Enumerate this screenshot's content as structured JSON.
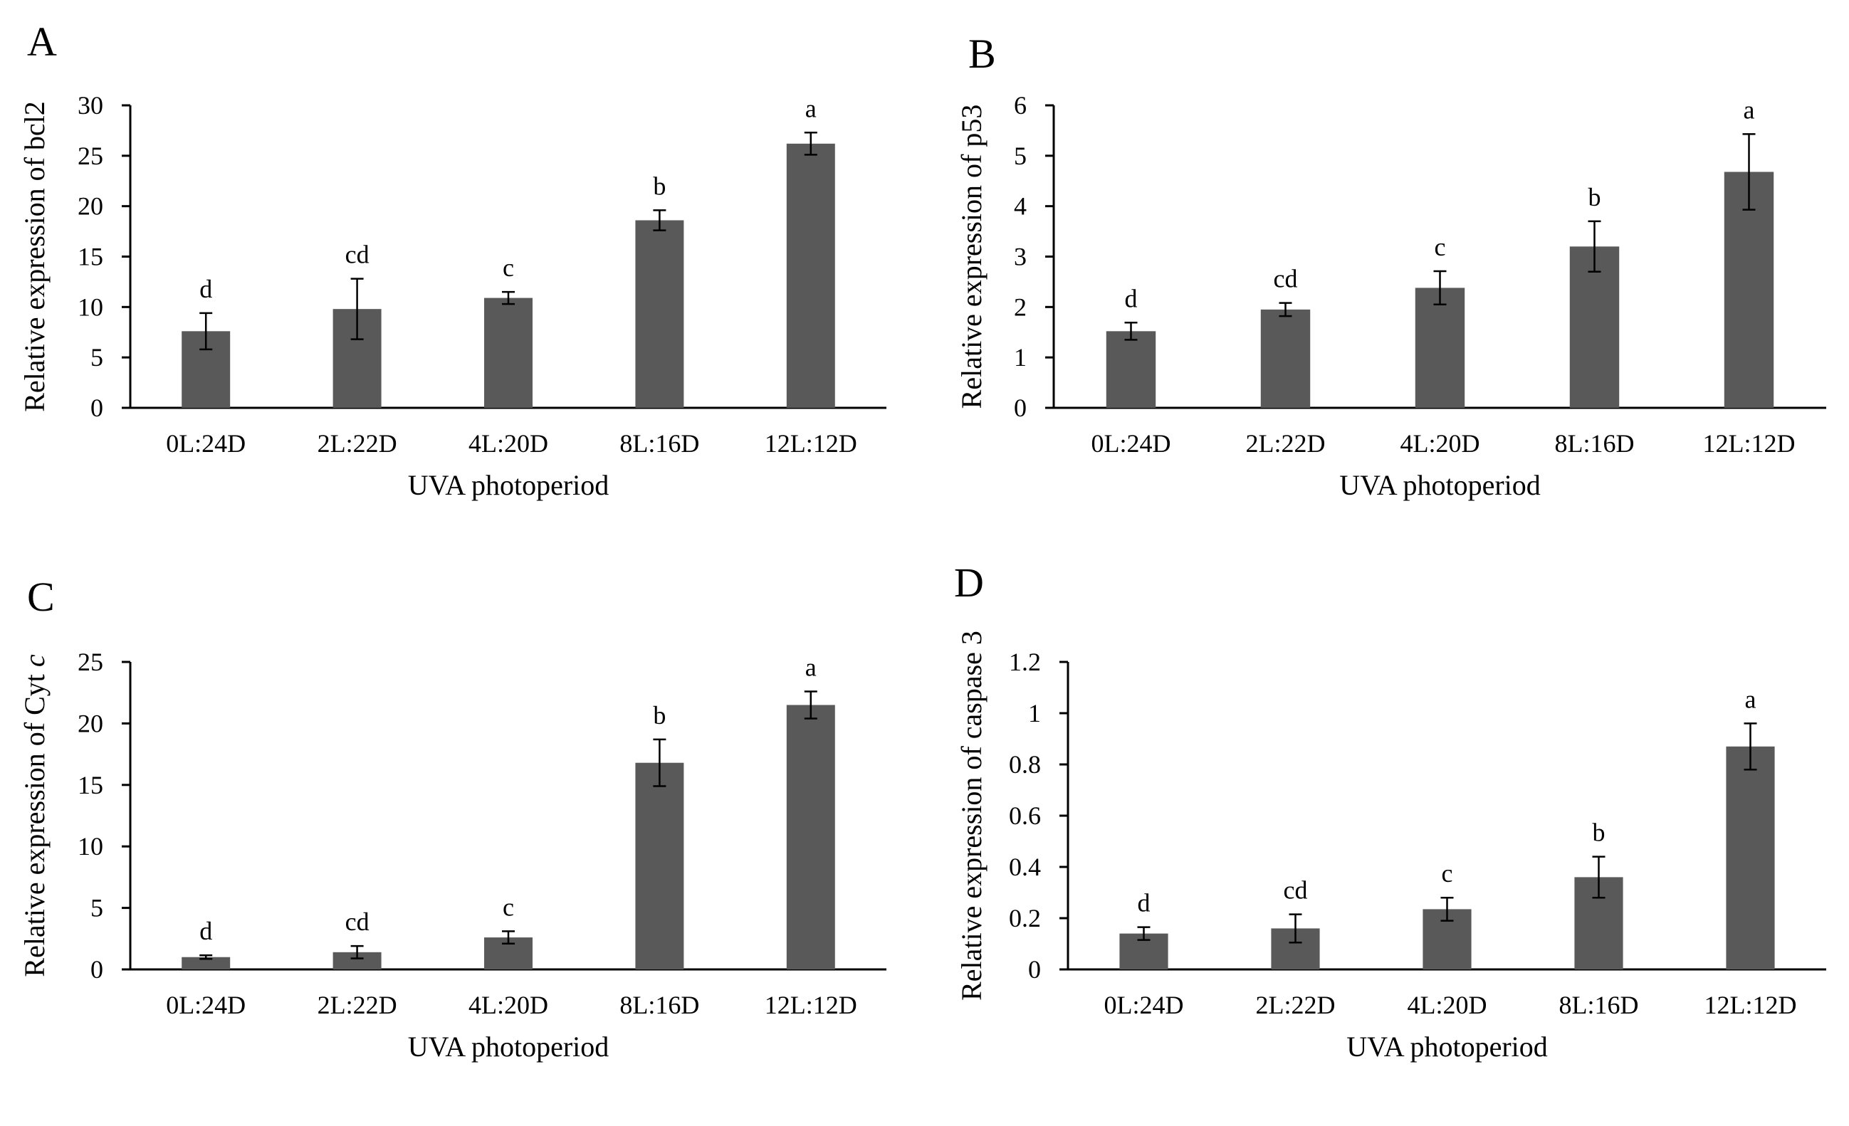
{
  "chart_data": [
    {
      "panel": "A",
      "type": "bar",
      "categories": [
        "0L:24D",
        "2L:22D",
        "4L:20D",
        "8L:16D",
        "12L:12D"
      ],
      "values": [
        7.6,
        9.8,
        10.9,
        18.6,
        26.2
      ],
      "errors": [
        1.8,
        3.0,
        0.6,
        1.0,
        1.1
      ],
      "significance": [
        "d",
        "cd",
        "c",
        "b",
        "a"
      ],
      "xlabel": "UVA photoperiod",
      "ylabel": "Relative expression of bcl2",
      "ylim": [
        0,
        30
      ],
      "yticks": [
        "0",
        "5",
        "10",
        "15",
        "20",
        "25",
        "30"
      ],
      "grid": false
    },
    {
      "panel": "B",
      "type": "bar",
      "categories": [
        "0L:24D",
        "2L:22D",
        "4L:20D",
        "8L:16D",
        "12L:12D"
      ],
      "values": [
        1.52,
        1.95,
        2.38,
        3.2,
        4.68
      ],
      "errors": [
        0.17,
        0.13,
        0.33,
        0.5,
        0.75
      ],
      "significance": [
        "d",
        "cd",
        "c",
        "b",
        "a"
      ],
      "xlabel": "UVA photoperiod",
      "ylabel": "Relative expression of p53",
      "ylim": [
        0,
        6
      ],
      "yticks": [
        "0",
        "1",
        "2",
        "3",
        "4",
        "5",
        "6"
      ],
      "grid": false
    },
    {
      "panel": "C",
      "type": "bar",
      "categories": [
        "0L:24D",
        "2L:22D",
        "4L:20D",
        "8L:16D",
        "12L:12D"
      ],
      "values": [
        1.0,
        1.4,
        2.6,
        16.8,
        21.5
      ],
      "errors": [
        0.15,
        0.5,
        0.5,
        1.9,
        1.1
      ],
      "significance": [
        "d",
        "cd",
        "c",
        "b",
        "a"
      ],
      "xlabel": "UVA photoperiod",
      "ylabel": "Relative expression of Cyt c",
      "ylabel_main": "Relative expression of Cyt ",
      "ylabel_italic": "c",
      "ylim": [
        0,
        25
      ],
      "yticks": [
        "0",
        "5",
        "10",
        "15",
        "20",
        "25"
      ],
      "grid": false
    },
    {
      "panel": "D",
      "type": "bar",
      "categories": [
        "0L:24D",
        "2L:22D",
        "4L:20D",
        "8L:16D",
        "12L:12D"
      ],
      "values": [
        0.14,
        0.16,
        0.235,
        0.36,
        0.87
      ],
      "errors": [
        0.025,
        0.055,
        0.045,
        0.08,
        0.09
      ],
      "significance": [
        "d",
        "cd",
        "c",
        "b",
        "a"
      ],
      "xlabel": "UVA photoperiod",
      "ylabel": "Relative expression of caspase 3",
      "ylim": [
        0,
        1.2
      ],
      "yticks": [
        "0",
        "0.2",
        "0.4",
        "0.6",
        "0.8",
        "1",
        "1.2"
      ],
      "grid": false
    }
  ],
  "colors": {
    "bar": "#595959",
    "axis": "#000000"
  }
}
